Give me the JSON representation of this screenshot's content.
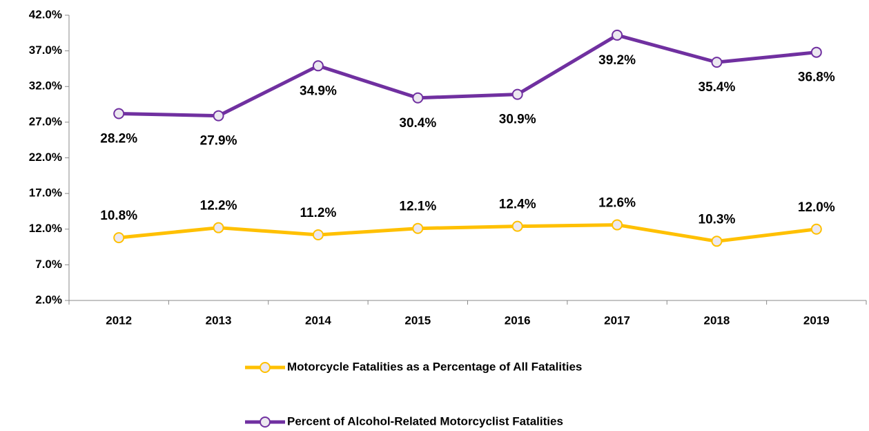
{
  "chart_data": {
    "type": "line",
    "categories": [
      "2012",
      "2013",
      "2014",
      "2015",
      "2016",
      "2017",
      "2018",
      "2019"
    ],
    "series": [
      {
        "name": "Motorcycle Fatalities as a Percentage of All Fatalities",
        "color": "#ffc000",
        "values": [
          10.8,
          12.2,
          11.2,
          12.1,
          12.4,
          12.6,
          10.3,
          12.0
        ],
        "value_labels": [
          "10.8%",
          "12.2%",
          "11.2%",
          "12.1%",
          "12.4%",
          "12.6%",
          "10.3%",
          "12.0%"
        ]
      },
      {
        "name": "Percent of Alcohol-Related Motorcyclist Fatalities",
        "color": "#7030a0",
        "values": [
          28.2,
          27.9,
          34.9,
          30.4,
          30.9,
          39.2,
          35.4,
          36.8
        ],
        "value_labels": [
          "28.2%",
          "27.9%",
          "34.9%",
          "30.4%",
          "30.9%",
          "39.2%",
          "35.4%",
          "36.8%"
        ]
      }
    ],
    "ylim": [
      2,
      42
    ],
    "yticks": [
      {
        "value": 2,
        "label": "2.0%"
      },
      {
        "value": 7,
        "label": "7.0%"
      },
      {
        "value": 12,
        "label": "12.0%"
      },
      {
        "value": 17,
        "label": "17.0%"
      },
      {
        "value": 22,
        "label": "22.0%"
      },
      {
        "value": 27,
        "label": "27.0%"
      },
      {
        "value": 32,
        "label": "32.0%"
      },
      {
        "value": 37,
        "label": "37.0%"
      },
      {
        "value": 42,
        "label": "42.0%"
      }
    ],
    "grid": false,
    "legend": "bottom"
  }
}
